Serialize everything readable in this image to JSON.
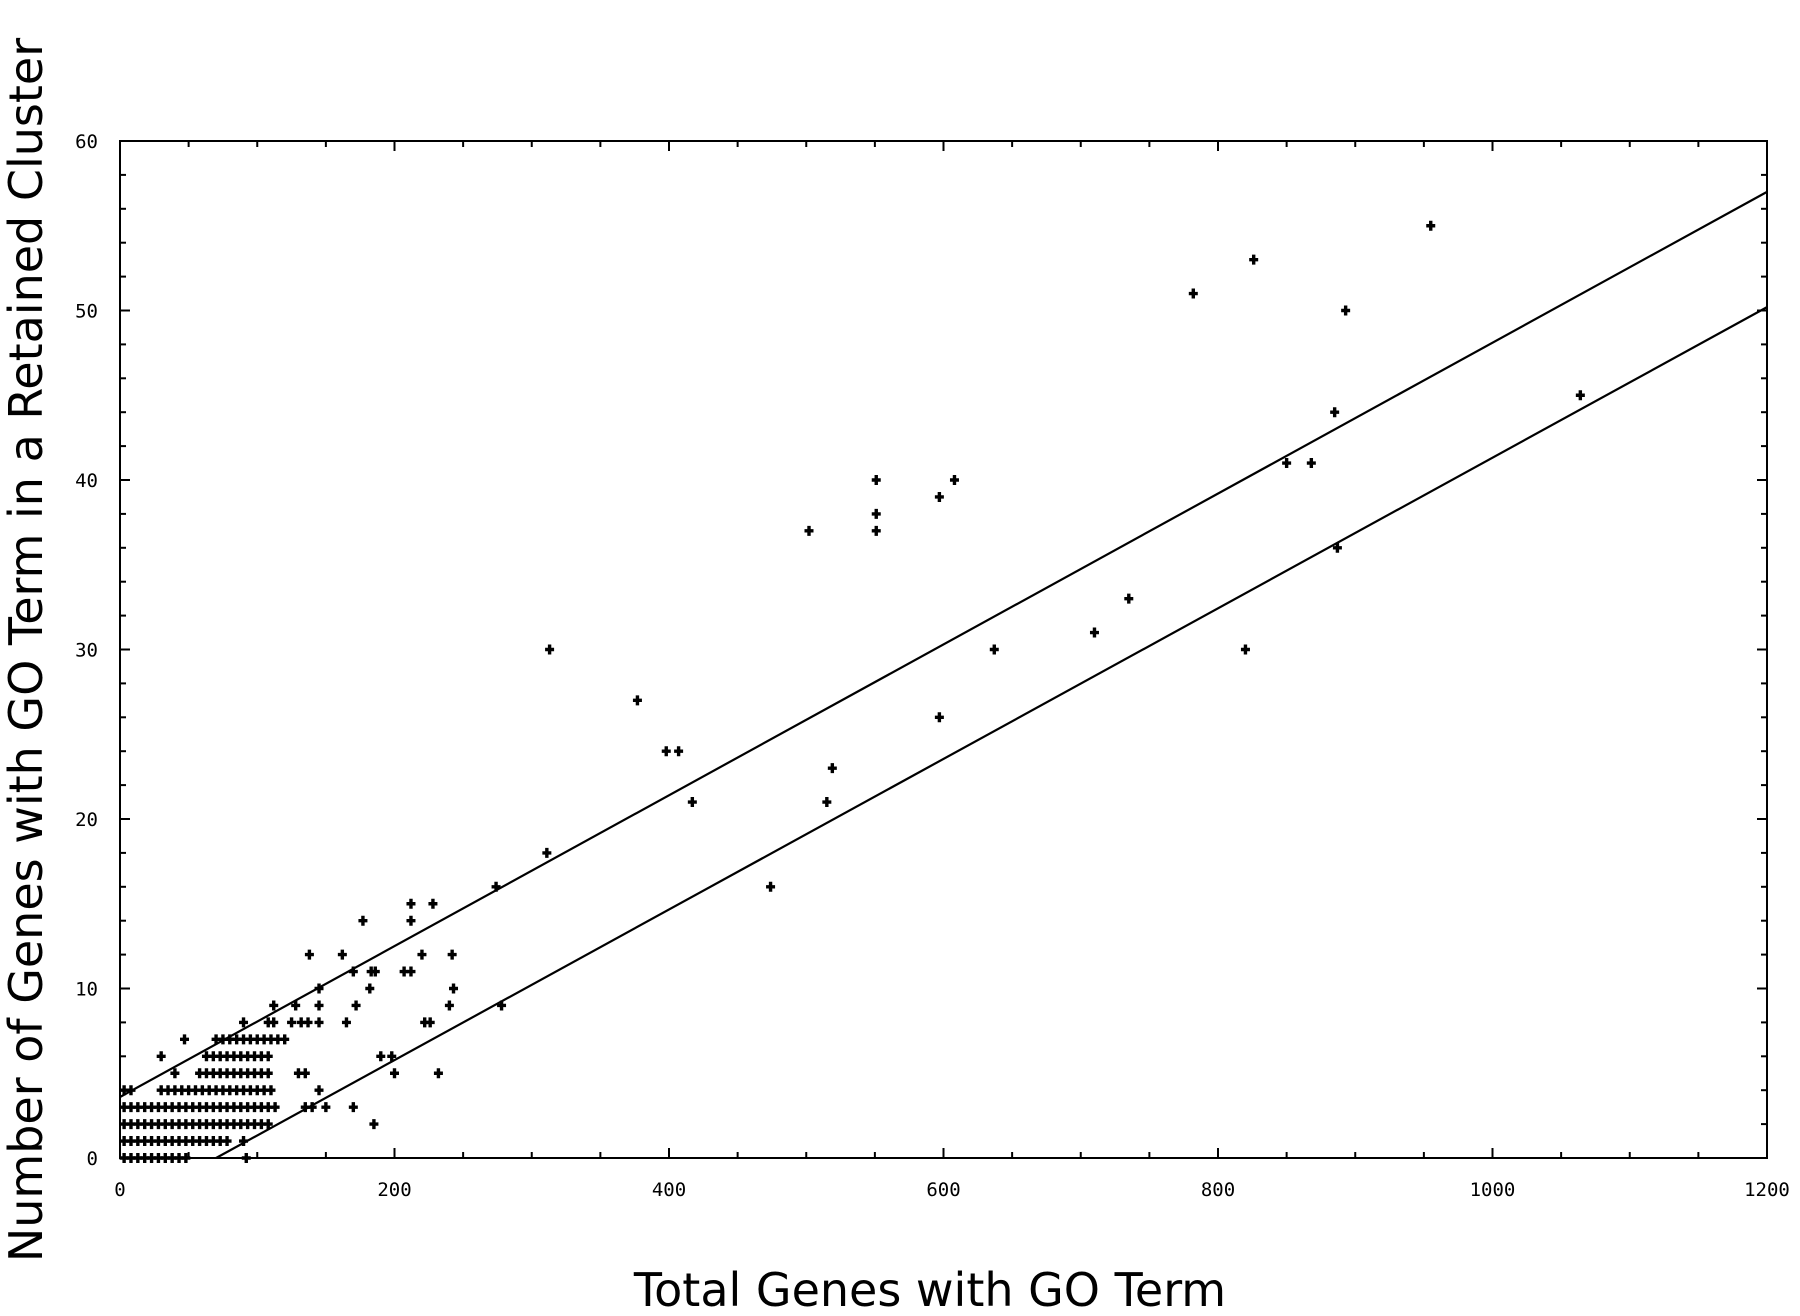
{
  "chart_data": {
    "type": "scatter",
    "title": "",
    "xlabel": "Total Genes with GO Term",
    "ylabel": "Number of Genes with GO Term in a Retained Cluster",
    "xlim": [
      0,
      1200
    ],
    "ylim": [
      0,
      60
    ],
    "xticks": [
      "0",
      "200",
      "400",
      "600",
      "800",
      "1000",
      "1200"
    ],
    "yticks": [
      "0",
      "10",
      "20",
      "30",
      "40",
      "50",
      "60"
    ],
    "grid": false,
    "legend": "none",
    "colors": {
      "points": "#000000",
      "lines": "#000000",
      "axes": "#000000",
      "background": "#ffffff"
    },
    "series": [
      {
        "type": "scatter",
        "points": [
          [
            3,
            0
          ],
          [
            8,
            0
          ],
          [
            13,
            0
          ],
          [
            18,
            0
          ],
          [
            23,
            0
          ],
          [
            28,
            0
          ],
          [
            33,
            0
          ],
          [
            38,
            0
          ],
          [
            43,
            0
          ],
          [
            48,
            0
          ],
          [
            92,
            0
          ],
          [
            3,
            1
          ],
          [
            8,
            1
          ],
          [
            13,
            1
          ],
          [
            18,
            1
          ],
          [
            23,
            1
          ],
          [
            28,
            1
          ],
          [
            33,
            1
          ],
          [
            38,
            1
          ],
          [
            43,
            1
          ],
          [
            48,
            1
          ],
          [
            53,
            1
          ],
          [
            58,
            1
          ],
          [
            63,
            1
          ],
          [
            68,
            1
          ],
          [
            73,
            1
          ],
          [
            78,
            1
          ],
          [
            90,
            1
          ],
          [
            3,
            2
          ],
          [
            8,
            2
          ],
          [
            13,
            2
          ],
          [
            18,
            2
          ],
          [
            23,
            2
          ],
          [
            28,
            2
          ],
          [
            33,
            2
          ],
          [
            38,
            2
          ],
          [
            43,
            2
          ],
          [
            48,
            2
          ],
          [
            53,
            2
          ],
          [
            58,
            2
          ],
          [
            63,
            2
          ],
          [
            68,
            2
          ],
          [
            73,
            2
          ],
          [
            78,
            2
          ],
          [
            83,
            2
          ],
          [
            88,
            2
          ],
          [
            93,
            2
          ],
          [
            98,
            2
          ],
          [
            103,
            2
          ],
          [
            108,
            2
          ],
          [
            185,
            2
          ],
          [
            3,
            3
          ],
          [
            8,
            3
          ],
          [
            13,
            3
          ],
          [
            18,
            3
          ],
          [
            23,
            3
          ],
          [
            28,
            3
          ],
          [
            33,
            3
          ],
          [
            38,
            3
          ],
          [
            43,
            3
          ],
          [
            48,
            3
          ],
          [
            53,
            3
          ],
          [
            58,
            3
          ],
          [
            63,
            3
          ],
          [
            68,
            3
          ],
          [
            73,
            3
          ],
          [
            78,
            3
          ],
          [
            83,
            3
          ],
          [
            88,
            3
          ],
          [
            93,
            3
          ],
          [
            98,
            3
          ],
          [
            103,
            3
          ],
          [
            108,
            3
          ],
          [
            113,
            3
          ],
          [
            135,
            3
          ],
          [
            140,
            3
          ],
          [
            150,
            3
          ],
          [
            170,
            3
          ],
          [
            3,
            4
          ],
          [
            8,
            4
          ],
          [
            30,
            4
          ],
          [
            35,
            4
          ],
          [
            40,
            4
          ],
          [
            45,
            4
          ],
          [
            50,
            4
          ],
          [
            55,
            4
          ],
          [
            60,
            4
          ],
          [
            65,
            4
          ],
          [
            70,
            4
          ],
          [
            75,
            4
          ],
          [
            80,
            4
          ],
          [
            85,
            4
          ],
          [
            90,
            4
          ],
          [
            95,
            4
          ],
          [
            100,
            4
          ],
          [
            105,
            4
          ],
          [
            110,
            4
          ],
          [
            145,
            4
          ],
          [
            40,
            5
          ],
          [
            58,
            5
          ],
          [
            63,
            5
          ],
          [
            68,
            5
          ],
          [
            73,
            5
          ],
          [
            78,
            5
          ],
          [
            83,
            5
          ],
          [
            88,
            5
          ],
          [
            93,
            5
          ],
          [
            98,
            5
          ],
          [
            103,
            5
          ],
          [
            108,
            5
          ],
          [
            130,
            5
          ],
          [
            135,
            5
          ],
          [
            200,
            5
          ],
          [
            232,
            5
          ],
          [
            30,
            6
          ],
          [
            63,
            6
          ],
          [
            68,
            6
          ],
          [
            73,
            6
          ],
          [
            78,
            6
          ],
          [
            83,
            6
          ],
          [
            88,
            6
          ],
          [
            93,
            6
          ],
          [
            98,
            6
          ],
          [
            103,
            6
          ],
          [
            108,
            6
          ],
          [
            190,
            6
          ],
          [
            198,
            6
          ],
          [
            47,
            7
          ],
          [
            70,
            7
          ],
          [
            75,
            7
          ],
          [
            80,
            7
          ],
          [
            85,
            7
          ],
          [
            90,
            7
          ],
          [
            95,
            7
          ],
          [
            100,
            7
          ],
          [
            105,
            7
          ],
          [
            110,
            7
          ],
          [
            115,
            7
          ],
          [
            120,
            7
          ],
          [
            90,
            8
          ],
          [
            108,
            8
          ],
          [
            112,
            8
          ],
          [
            125,
            8
          ],
          [
            132,
            8
          ],
          [
            137,
            8
          ],
          [
            145,
            8
          ],
          [
            165,
            8
          ],
          [
            222,
            8
          ],
          [
            226,
            8
          ],
          [
            112,
            9
          ],
          [
            128,
            9
          ],
          [
            145,
            9
          ],
          [
            172,
            9
          ],
          [
            240,
            9
          ],
          [
            278,
            9
          ],
          [
            145,
            10
          ],
          [
            182,
            10
          ],
          [
            243,
            10
          ],
          [
            170,
            11
          ],
          [
            183,
            11
          ],
          [
            186,
            11
          ],
          [
            207,
            11
          ],
          [
            212,
            11
          ],
          [
            138,
            12
          ],
          [
            162,
            12
          ],
          [
            220,
            12
          ],
          [
            242,
            12
          ],
          [
            212,
            14
          ],
          [
            177,
            14
          ],
          [
            212,
            15
          ],
          [
            228,
            15
          ],
          [
            274,
            16
          ],
          [
            474,
            16
          ],
          [
            311,
            18
          ],
          [
            417,
            21
          ],
          [
            515,
            21
          ],
          [
            519,
            23
          ],
          [
            398,
            24
          ],
          [
            407,
            24
          ],
          [
            597,
            26
          ],
          [
            377,
            27
          ],
          [
            313,
            30
          ],
          [
            637,
            30
          ],
          [
            820,
            30
          ],
          [
            710,
            31
          ],
          [
            735,
            33
          ],
          [
            887,
            36
          ],
          [
            551,
            37
          ],
          [
            502,
            37
          ],
          [
            551,
            38
          ],
          [
            597,
            39
          ],
          [
            551,
            40
          ],
          [
            608,
            40
          ],
          [
            850,
            41
          ],
          [
            868,
            41
          ],
          [
            885,
            44
          ],
          [
            1064,
            45
          ],
          [
            893,
            50
          ],
          [
            782,
            51
          ],
          [
            826,
            53
          ],
          [
            955,
            55
          ]
        ]
      },
      {
        "type": "line",
        "points": [
          [
            0,
            3.6
          ],
          [
            1200,
            57
          ]
        ]
      },
      {
        "type": "line",
        "points": [
          [
            70,
            0
          ],
          [
            1200,
            50.2
          ]
        ]
      }
    ]
  }
}
